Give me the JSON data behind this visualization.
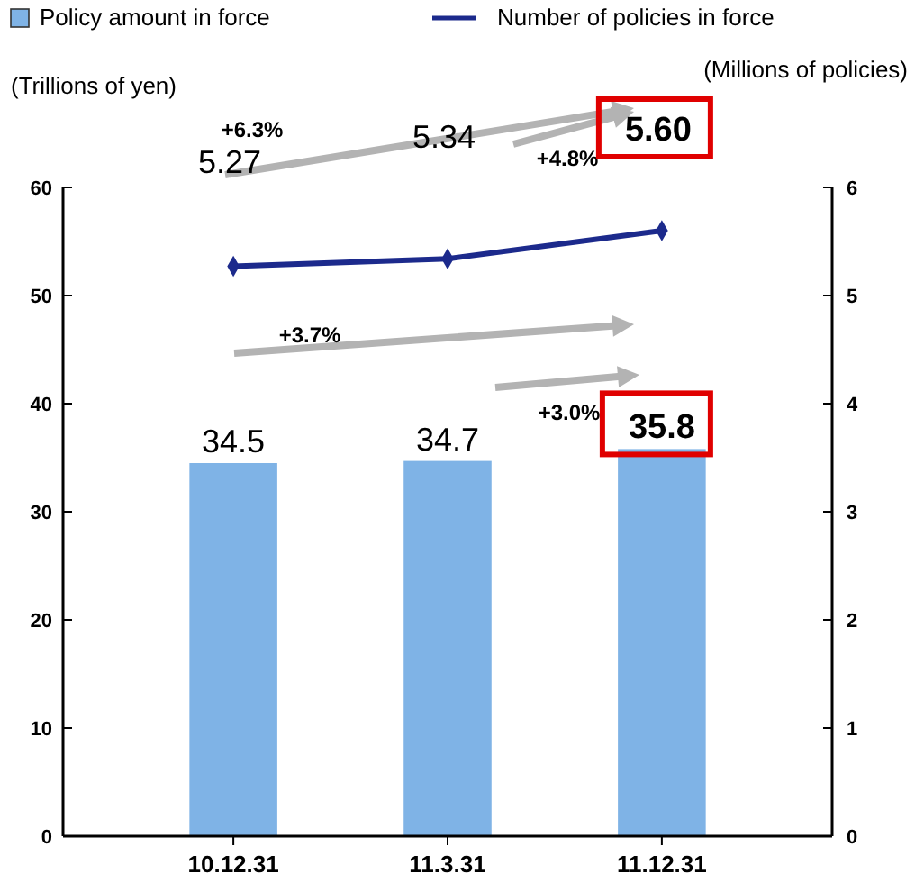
{
  "chart_data": {
    "type": "bar",
    "categories": [
      "10.12.31",
      "11.3.31",
      "11.12.31"
    ],
    "series": [
      {
        "name": "Policy amount in force",
        "color": "#7fb3e6",
        "values": [
          34.5,
          34.7,
          35.8
        ],
        "value_labels": [
          "34.5",
          "34.7",
          "35.8"
        ]
      },
      {
        "name": "Number of policies in force",
        "type": "line",
        "axis": "y2",
        "color": "#1c2a8c",
        "values": [
          5.27,
          5.34,
          5.6
        ],
        "value_labels": [
          "5.27",
          "5.34",
          "5.60"
        ],
        "marker": "diamond"
      }
    ],
    "ylabel": "(Trillions of yen)",
    "y2label": "(Millions of policies)",
    "ylim": [
      0,
      60
    ],
    "yticks": [
      0,
      10,
      20,
      30,
      40,
      50,
      60
    ],
    "y2lim": [
      0,
      6
    ],
    "y2ticks": [
      0,
      1,
      2,
      3,
      4,
      5,
      6
    ],
    "annotations": [
      "+6.3%",
      "+4.8%",
      "+3.7%",
      "+3.0%"
    ],
    "legend": "top",
    "grid": false
  }
}
